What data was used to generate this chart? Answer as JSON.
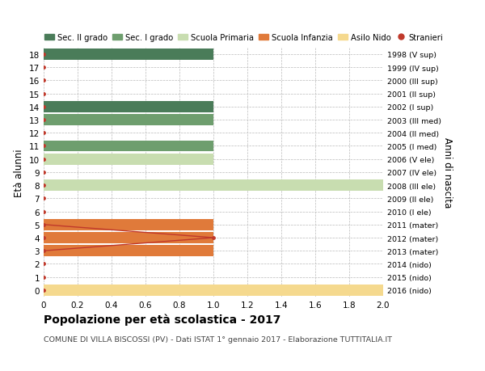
{
  "ages": [
    18,
    17,
    16,
    15,
    14,
    13,
    12,
    11,
    10,
    9,
    8,
    7,
    6,
    5,
    4,
    3,
    2,
    1,
    0
  ],
  "right_labels": [
    "1998 (V sup)",
    "1999 (IV sup)",
    "2000 (III sup)",
    "2001 (II sup)",
    "2002 (I sup)",
    "2003 (III med)",
    "2004 (II med)",
    "2005 (I med)",
    "2006 (V ele)",
    "2007 (IV ele)",
    "2008 (III ele)",
    "2009 (II ele)",
    "2010 (I ele)",
    "2011 (mater)",
    "2012 (mater)",
    "2013 (mater)",
    "2014 (nido)",
    "2015 (nido)",
    "2016 (nido)"
  ],
  "bars": [
    {
      "age": 18,
      "value": 1.0,
      "color": "#4a7c59"
    },
    {
      "age": 14,
      "value": 1.0,
      "color": "#4a7c59"
    },
    {
      "age": 13,
      "value": 1.0,
      "color": "#6e9e6e"
    },
    {
      "age": 11,
      "value": 1.0,
      "color": "#6e9e6e"
    },
    {
      "age": 10,
      "value": 1.0,
      "color": "#c8ddb0"
    },
    {
      "age": 8,
      "value": 2.0,
      "color": "#c8ddb0"
    },
    {
      "age": 5,
      "value": 1.0,
      "color": "#e07a3a"
    },
    {
      "age": 4,
      "value": 1.0,
      "color": "#e07a3a"
    },
    {
      "age": 3,
      "value": 1.0,
      "color": "#e07a3a"
    },
    {
      "age": 0,
      "value": 2.0,
      "color": "#f5d98e"
    }
  ],
  "colors": {
    "sec2": "#4a7c59",
    "sec1": "#6e9e6e",
    "primaria": "#c8ddb0",
    "infanzia": "#e07a3a",
    "nido": "#f5d98e",
    "stranieri": "#c0392b"
  },
  "stranieri_dots_all": [
    18,
    17,
    16,
    15,
    14,
    13,
    12,
    11,
    10,
    9,
    8,
    7,
    6,
    5,
    4,
    3,
    2,
    1,
    0
  ],
  "stranieri_line_x": [
    0,
    1.0,
    0
  ],
  "stranieri_line_y": [
    5,
    4,
    3
  ],
  "stranieri_point_x": 1.0,
  "stranieri_point_y": 4,
  "legend_labels": [
    "Sec. II grado",
    "Sec. I grado",
    "Scuola Primaria",
    "Scuola Infanzia",
    "Asilo Nido",
    "Stranieri"
  ],
  "ylabel": "Età alunni",
  "right_ylabel": "Anni di nascita",
  "xlim": [
    0,
    2.0
  ],
  "ylim": [
    -0.5,
    18.5
  ],
  "xticks": [
    0,
    0.2,
    0.4,
    0.6,
    0.8,
    1.0,
    1.2,
    1.4,
    1.6,
    1.8,
    2.0
  ],
  "xtick_labels": [
    "0",
    "0.2",
    "0.4",
    "0.6",
    "0.8",
    "1.0",
    "1.2",
    "1.4",
    "1.6",
    "1.8",
    "2.0"
  ],
  "title": "Popolazione per età scolastica - 2017",
  "subtitle": "COMUNE DI VILLA BISCOSSI (PV) - Dati ISTAT 1° gennaio 2017 - Elaborazione TUTTITALIA.IT",
  "background_color": "#ffffff",
  "bar_height": 0.85
}
